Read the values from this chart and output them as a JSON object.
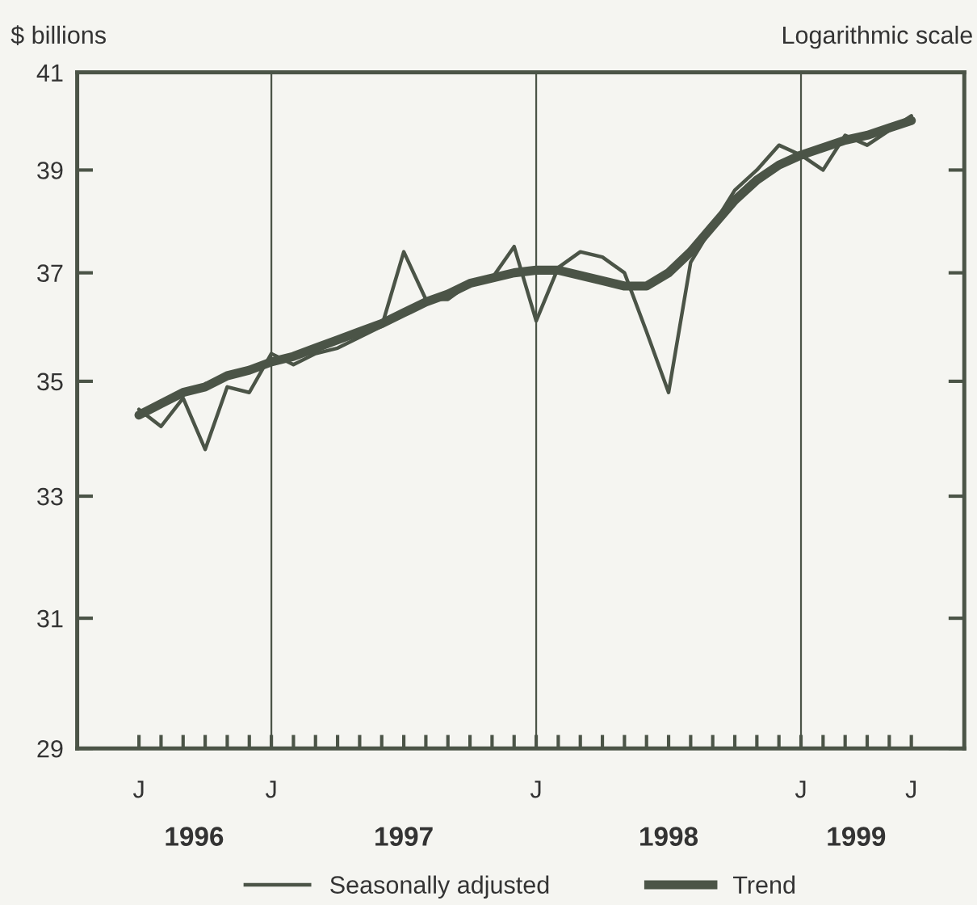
{
  "chart_data": {
    "type": "line",
    "ylabel": "$ billions",
    "annotations": [
      "Logarithmic scale",
      "1996",
      "1997",
      "1998",
      "1999"
    ],
    "categories": [
      "J",
      null,
      null,
      null,
      null,
      null,
      "J",
      null,
      null,
      null,
      null,
      null,
      null,
      null,
      null,
      null,
      null,
      null,
      "J",
      null,
      null,
      null,
      null,
      null,
      null,
      null,
      null,
      null,
      null,
      null,
      "J",
      null,
      null,
      null,
      null,
      "J"
    ],
    "series": [
      {
        "name": "Seasonally adjusted",
        "color": "#4b5447",
        "values": [
          34.5,
          34.2,
          34.7,
          33.8,
          34.9,
          34.8,
          35.5,
          35.3,
          35.5,
          35.6,
          35.8,
          36.0,
          37.4,
          36.5,
          36.5,
          36.8,
          36.9,
          37.5,
          36.1,
          37.1,
          37.4,
          37.3,
          37.0,
          35.9,
          34.8,
          37.2,
          37.9,
          38.6,
          39.0,
          39.5,
          39.3,
          39.0,
          39.7,
          39.5,
          39.8,
          40.1
        ]
      },
      {
        "name": "Trend",
        "color": "#4b5447",
        "values": [
          34.4,
          34.6,
          34.8,
          34.9,
          35.1,
          35.2,
          35.35,
          35.45,
          35.6,
          35.75,
          35.9,
          36.05,
          36.25,
          36.45,
          36.6,
          36.8,
          36.9,
          37.0,
          37.05,
          37.05,
          36.95,
          36.85,
          36.75,
          36.75,
          37.0,
          37.4,
          37.9,
          38.4,
          38.8,
          39.1,
          39.3,
          39.45,
          39.6,
          39.7,
          39.85,
          40.0
        ]
      }
    ],
    "log": true,
    "ylim": [
      29,
      41
    ],
    "yticks": [
      29,
      31,
      33,
      35,
      37,
      39,
      41
    ],
    "grid": "x",
    "legend": "bottom"
  }
}
